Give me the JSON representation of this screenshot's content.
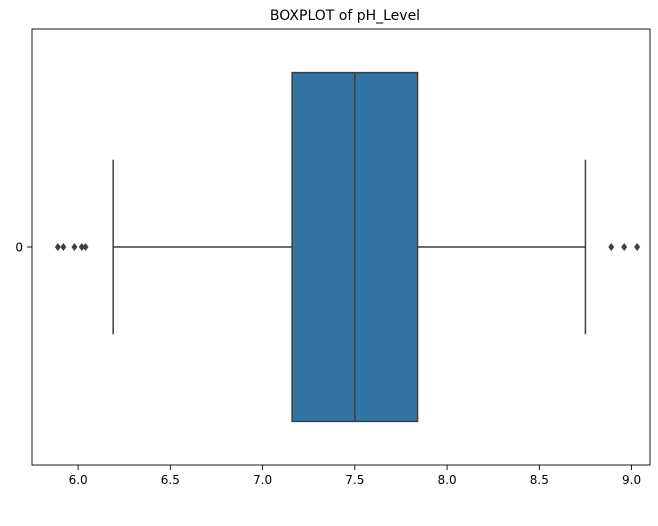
{
  "chart_data": {
    "type": "box",
    "title": "BOXPLOT of pH_Level",
    "xlabel": "",
    "ylabel": "",
    "orientation": "horizontal",
    "xlim": [
      5.75,
      9.1
    ],
    "x_ticks": [
      6.0,
      6.5,
      7.0,
      7.5,
      8.0,
      8.5,
      9.0
    ],
    "x_tick_labels": [
      "6.0",
      "6.5",
      "7.0",
      "7.5",
      "8.0",
      "8.5",
      "9.0"
    ],
    "categories": [
      "0"
    ],
    "grid": false,
    "boxes": [
      {
        "category": "0",
        "whisker_low": 6.19,
        "q1": 7.16,
        "median": 7.5,
        "q3": 7.84,
        "whisker_high": 8.75,
        "outliers": [
          5.89,
          5.92,
          5.98,
          6.02,
          6.04,
          8.89,
          8.96,
          9.03
        ]
      }
    ],
    "colors": {
      "box_fill": "#3274a1",
      "line": "#3f3f3f",
      "axes": "#000000"
    }
  }
}
